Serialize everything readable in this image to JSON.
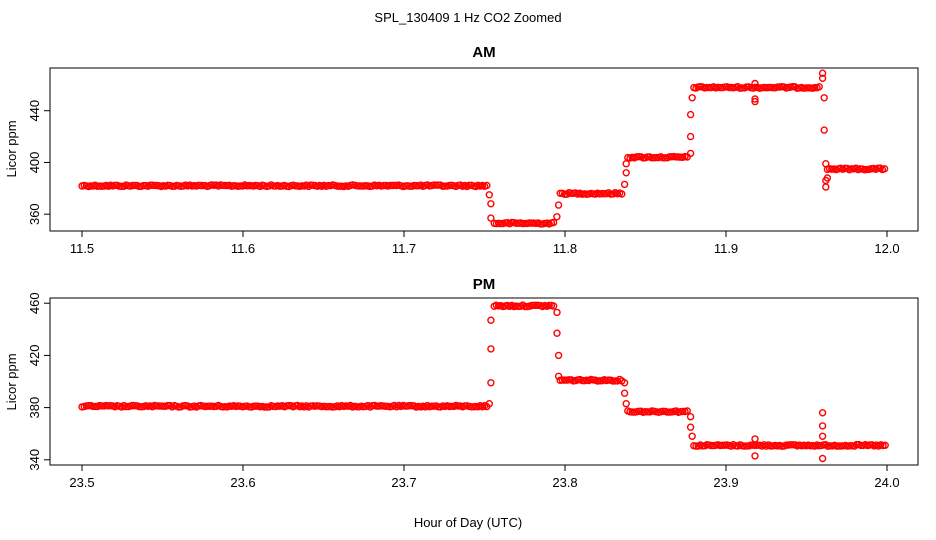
{
  "title": "SPL_130409  1 Hz CO2 Zoomed",
  "xlabel": "Hour of Day (UTC)",
  "colors": {
    "points": "#ff0000",
    "axes": "#000000",
    "background": "#ffffff"
  },
  "chart_data": [
    {
      "type": "scatter",
      "title": "AM",
      "ylabel": "Licor ppm",
      "xlim": [
        11.5,
        12.0
      ],
      "ylim": [
        347,
        473
      ],
      "x_ticks": [
        "11.5",
        "11.6",
        "11.7",
        "11.8",
        "11.9",
        "12.0"
      ],
      "y_ticks": [
        "360",
        "400",
        "440"
      ],
      "grid": false,
      "levels": [
        {
          "x": [
            11.5,
            11.752
          ],
          "y": 382
        },
        {
          "x": [
            11.756,
            11.794
          ],
          "y": 353
        },
        {
          "x": [
            11.797,
            11.836
          ],
          "y": 376
        },
        {
          "x": [
            11.839,
            11.877
          ],
          "y": 404
        },
        {
          "x": [
            11.88,
            11.959
          ],
          "y": 458
        },
        {
          "x": [
            11.963,
            11.999
          ],
          "y": 395
        }
      ],
      "outliers": [
        {
          "x": 11.753,
          "y": 375
        },
        {
          "x": 11.754,
          "y": 368
        },
        {
          "x": 11.754,
          "y": 357
        },
        {
          "x": 11.795,
          "y": 358
        },
        {
          "x": 11.796,
          "y": 367
        },
        {
          "x": 11.837,
          "y": 383
        },
        {
          "x": 11.838,
          "y": 392
        },
        {
          "x": 11.838,
          "y": 399
        },
        {
          "x": 11.878,
          "y": 407
        },
        {
          "x": 11.878,
          "y": 420
        },
        {
          "x": 11.878,
          "y": 437
        },
        {
          "x": 11.879,
          "y": 450
        },
        {
          "x": 11.918,
          "y": 461
        },
        {
          "x": 11.918,
          "y": 449
        },
        {
          "x": 11.918,
          "y": 447
        },
        {
          "x": 11.96,
          "y": 469
        },
        {
          "x": 11.96,
          "y": 465
        },
        {
          "x": 11.961,
          "y": 450
        },
        {
          "x": 11.961,
          "y": 425
        },
        {
          "x": 11.962,
          "y": 399
        },
        {
          "x": 11.962,
          "y": 386
        },
        {
          "x": 11.962,
          "y": 381
        },
        {
          "x": 11.963,
          "y": 388
        }
      ]
    },
    {
      "type": "scatter",
      "title": "PM",
      "ylabel": "Licor ppm",
      "xlim": [
        23.5,
        24.0
      ],
      "ylim": [
        336,
        464
      ],
      "x_ticks": [
        "23.5",
        "23.6",
        "23.7",
        "23.8",
        "23.9",
        "24.0"
      ],
      "y_ticks": [
        "340",
        "380",
        "420",
        "460"
      ],
      "grid": false,
      "levels": [
        {
          "x": [
            23.5,
            23.752
          ],
          "y": 381
        },
        {
          "x": [
            23.756,
            23.794
          ],
          "y": 458
        },
        {
          "x": [
            23.797,
            23.836
          ],
          "y": 401
        },
        {
          "x": [
            23.839,
            23.877
          ],
          "y": 377
        },
        {
          "x": [
            23.88,
            23.999
          ],
          "y": 351
        }
      ],
      "outliers": [
        {
          "x": 23.753,
          "y": 383
        },
        {
          "x": 23.754,
          "y": 399
        },
        {
          "x": 23.754,
          "y": 425
        },
        {
          "x": 23.754,
          "y": 447
        },
        {
          "x": 23.795,
          "y": 453
        },
        {
          "x": 23.795,
          "y": 437
        },
        {
          "x": 23.796,
          "y": 420
        },
        {
          "x": 23.796,
          "y": 404
        },
        {
          "x": 23.837,
          "y": 399
        },
        {
          "x": 23.837,
          "y": 391
        },
        {
          "x": 23.838,
          "y": 383
        },
        {
          "x": 23.878,
          "y": 373
        },
        {
          "x": 23.878,
          "y": 365
        },
        {
          "x": 23.879,
          "y": 358
        },
        {
          "x": 23.918,
          "y": 356
        },
        {
          "x": 23.918,
          "y": 343
        },
        {
          "x": 23.96,
          "y": 376
        },
        {
          "x": 23.96,
          "y": 366
        },
        {
          "x": 23.96,
          "y": 358
        },
        {
          "x": 23.96,
          "y": 341
        }
      ]
    }
  ]
}
